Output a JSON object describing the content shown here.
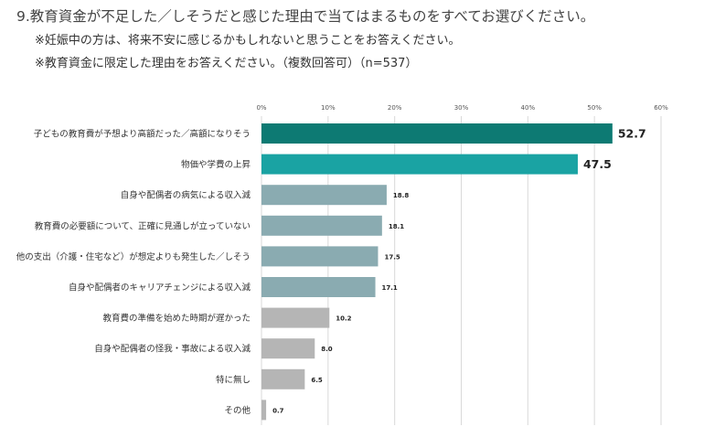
{
  "header": {
    "title": "9.教育資金が不足した／しそうだと感じた理由で当てはまるものをすべてお選びください。",
    "note1": "※妊娠中の方は、将来不安に感じるかもしれないと思うことをお答えください。",
    "note2": "※教育資金に限定した理由をお答えください。（複数回答可）（n=537）"
  },
  "chart_data": {
    "type": "bar",
    "orientation": "horizontal",
    "title": "",
    "xlabel": "",
    "ylabel": "",
    "xlim": [
      0,
      60
    ],
    "x_ticks": [
      "0%",
      "10%",
      "20%",
      "30%",
      "40%",
      "50%",
      "60%"
    ],
    "grid": true,
    "categories": [
      "子どもの教育費が予想より高額だった／高額になりそう",
      "物価や学費の上昇",
      "自身や配偶者の病気による収入減",
      "教育費の必要額について、正確に見通しが立っていない",
      "他の支出（介護・住宅など）が想定よりも発生した／しそう",
      "自身や配偶者のキャリアチェンジによる収入減",
      "教育費の準備を始めた時期が遅かった",
      "自身や配偶者の怪我・事故による収入減",
      "特に無し",
      "その他"
    ],
    "values": [
      52.7,
      47.5,
      18.8,
      18.1,
      17.5,
      17.1,
      10.2,
      8.0,
      6.5,
      0.7
    ],
    "value_labels": [
      "52.7",
      "47.5",
      "18.8",
      "18.1",
      "17.5",
      "17.1",
      "10.2",
      "8.0",
      "6.5",
      "0.7"
    ],
    "colors": [
      "#0d7a73",
      "#1aa3a3",
      "#8aabb1",
      "#8aabb1",
      "#8aabb1",
      "#8aabb1",
      "#b5b5b5",
      "#b5b5b5",
      "#b5b5b5",
      "#b5b5b5"
    ]
  }
}
